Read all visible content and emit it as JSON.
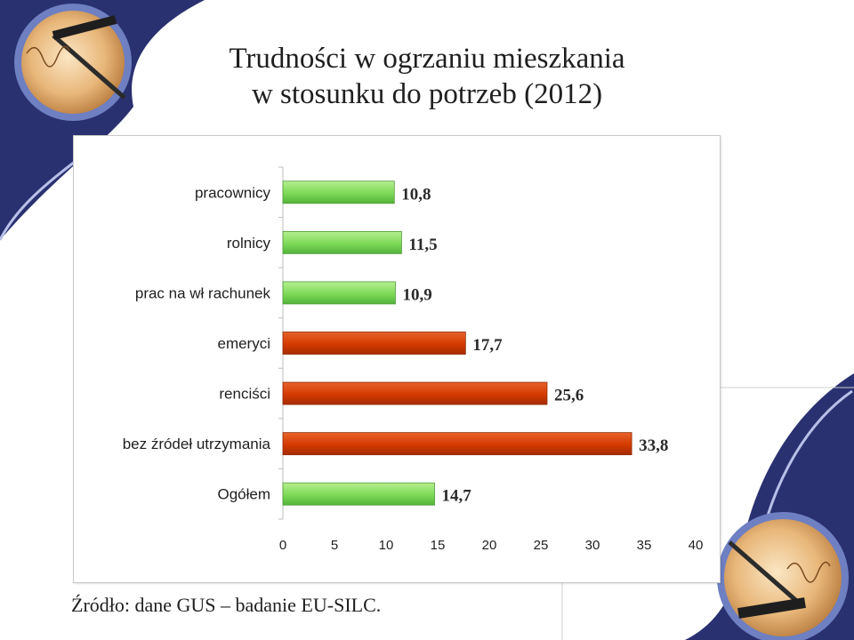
{
  "title_line1": "Trudności w ogrzaniu mieszkania",
  "title_line2": "w stosunku do potrzeb (2012)",
  "source": "Źródło: dane GUS – badanie EU-SILC.",
  "colors": {
    "green": "#7ed957",
    "red": "#d43a00"
  },
  "chart_data": {
    "type": "bar",
    "orientation": "horizontal",
    "categories": [
      "pracownicy",
      "rolnicy",
      "prac na wł rachunek",
      "emeryci",
      "renciści",
      "bez źródeł utrzymania",
      "Ogółem"
    ],
    "values": [
      10.8,
      11.5,
      10.9,
      17.7,
      25.6,
      33.8,
      14.7
    ],
    "value_labels": [
      "10,8",
      "11,5",
      "10,9",
      "17,7",
      "25,6",
      "33,8",
      "14,7"
    ],
    "bar_colors": [
      "green",
      "green",
      "green",
      "red",
      "red",
      "red",
      "green"
    ],
    "xlim": [
      0,
      40
    ],
    "xticks": [
      0,
      5,
      10,
      15,
      20,
      25,
      30,
      35,
      40
    ],
    "grid": false,
    "legend": false
  }
}
